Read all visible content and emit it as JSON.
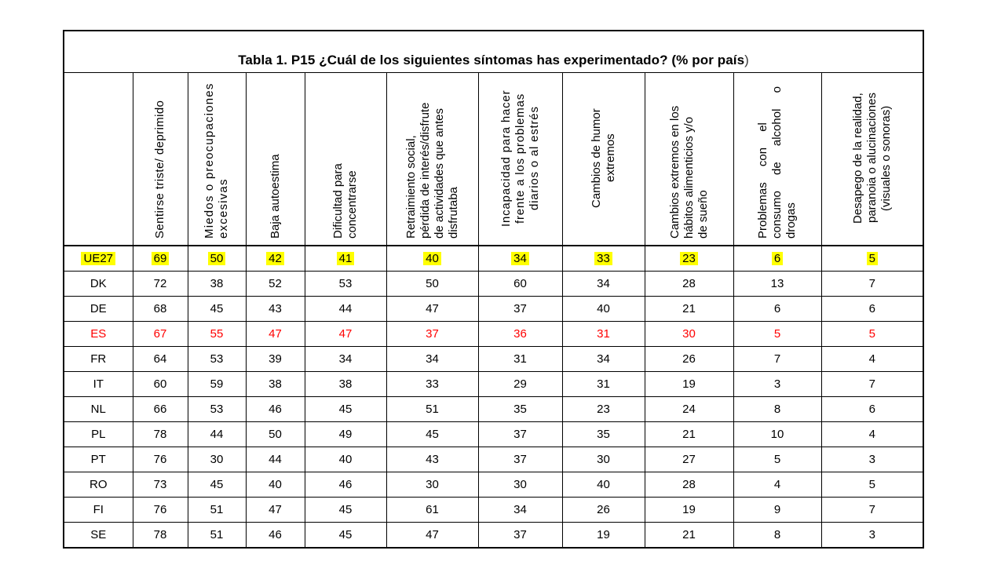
{
  "title": {
    "main": "Tabla 1. P15 ¿Cuál de los siguientes síntomas has experimentado? (% por país",
    "suffix": ")"
  },
  "chart_data": {
    "type": "table",
    "title": "Tabla 1. P15 ¿Cuál de los siguientes síntomas has experimentado? (% por país)",
    "columns": [
      "Sentirse triste/ deprimido",
      "Miedos o preocupaciones\nexcesivas",
      "Baja autoestima",
      "Dificultad para\nconcentrarse",
      "Retraimiento social,\npérdida de interés/disfrute\nde actividades que antes\ndisfrutaba",
      "Incapacidad para hacer\nfrente a los problemas\ndiarios o al estrés",
      "Cambios de humor\nextremos",
      "Cambios extremos en los\nhábitos alimenticios y/o\nde sueño",
      "Problemas con el\nconsumo de alcohol o\ndrogas",
      "Desapego de la realidad,\nparanoia o alucinaciones\n(visuales o sonoras)"
    ],
    "rows": [
      {
        "country": "UE27",
        "values": [
          69,
          50,
          42,
          41,
          40,
          34,
          33,
          23,
          6,
          5
        ],
        "highlight": "yellow"
      },
      {
        "country": "DK",
        "values": [
          72,
          38,
          52,
          53,
          50,
          60,
          34,
          28,
          13,
          7
        ],
        "highlight": "none"
      },
      {
        "country": "DE",
        "values": [
          68,
          45,
          43,
          44,
          47,
          37,
          40,
          21,
          6,
          6
        ],
        "highlight": "none"
      },
      {
        "country": "ES",
        "values": [
          67,
          55,
          47,
          47,
          37,
          36,
          31,
          30,
          5,
          5
        ],
        "highlight": "red"
      },
      {
        "country": "FR",
        "values": [
          64,
          53,
          39,
          34,
          34,
          31,
          34,
          26,
          7,
          4
        ],
        "highlight": "none"
      },
      {
        "country": "IT",
        "values": [
          60,
          59,
          38,
          38,
          33,
          29,
          31,
          19,
          3,
          7
        ],
        "highlight": "none"
      },
      {
        "country": "NL",
        "values": [
          66,
          53,
          46,
          45,
          51,
          35,
          23,
          24,
          8,
          6
        ],
        "highlight": "none"
      },
      {
        "country": "PL",
        "values": [
          78,
          44,
          50,
          49,
          45,
          37,
          35,
          21,
          10,
          4
        ],
        "highlight": "none"
      },
      {
        "country": "PT",
        "values": [
          76,
          30,
          44,
          40,
          43,
          37,
          30,
          27,
          5,
          3
        ],
        "highlight": "none"
      },
      {
        "country": "RO",
        "values": [
          73,
          45,
          40,
          46,
          30,
          30,
          40,
          28,
          4,
          5
        ],
        "highlight": "none"
      },
      {
        "country": "FI",
        "values": [
          76,
          51,
          47,
          45,
          61,
          34,
          26,
          19,
          9,
          7
        ],
        "highlight": "none"
      },
      {
        "country": "SE",
        "values": [
          78,
          51,
          46,
          45,
          47,
          37,
          19,
          21,
          8,
          3
        ],
        "highlight": "none"
      }
    ],
    "colors": {
      "highlight_yellow": "#ffff00",
      "highlight_red": "#ff0000",
      "border": "#000000",
      "text": "#000000",
      "background": "#ffffff"
    },
    "layout": {
      "legend_position": "none",
      "grid": "table-borders"
    }
  }
}
